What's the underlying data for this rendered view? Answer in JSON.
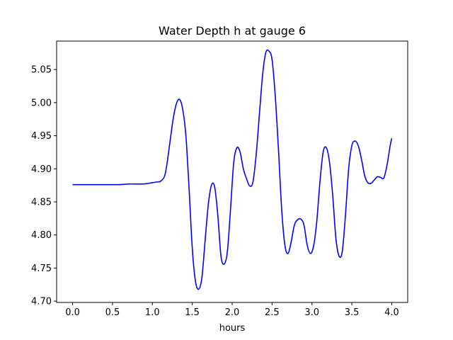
{
  "chart_data": {
    "type": "line",
    "title": "Water Depth h at gauge 6",
    "xlabel": "hours",
    "ylabel": "",
    "xlim": [
      -0.2,
      4.2
    ],
    "ylim": [
      4.698,
      5.093
    ],
    "xticks": [
      0.0,
      0.5,
      1.0,
      1.5,
      2.0,
      2.5,
      3.0,
      3.5,
      4.0
    ],
    "xtick_labels": [
      "0.0",
      "0.5",
      "1.0",
      "1.5",
      "2.0",
      "2.5",
      "3.0",
      "3.5",
      "4.0"
    ],
    "yticks": [
      4.7,
      4.75,
      4.8,
      4.85,
      4.9,
      4.95,
      5.0,
      5.05
    ],
    "ytick_labels": [
      "4.70",
      "4.75",
      "4.80",
      "4.85",
      "4.90",
      "4.95",
      "5.00",
      "5.05"
    ],
    "grid": false,
    "series": [
      {
        "color": "#0000ff",
        "x": [
          0.0,
          0.2,
          0.4,
          0.5,
          0.6,
          0.7,
          0.8,
          0.9,
          1.0,
          1.05,
          1.1,
          1.15,
          1.18,
          1.22,
          1.26,
          1.3,
          1.34,
          1.38,
          1.42,
          1.46,
          1.5,
          1.54,
          1.58,
          1.62,
          1.66,
          1.7,
          1.74,
          1.78,
          1.82,
          1.86,
          1.9,
          1.94,
          1.98,
          2.02,
          2.06,
          2.1,
          2.14,
          2.18,
          2.22,
          2.26,
          2.3,
          2.34,
          2.38,
          2.42,
          2.46,
          2.5,
          2.54,
          2.58,
          2.62,
          2.66,
          2.7,
          2.74,
          2.78,
          2.82,
          2.86,
          2.9,
          2.94,
          2.98,
          3.02,
          3.06,
          3.1,
          3.14,
          3.18,
          3.22,
          3.26,
          3.3,
          3.34,
          3.38,
          3.42,
          3.46,
          3.5,
          3.54,
          3.58,
          3.62,
          3.66,
          3.7,
          3.74,
          3.78,
          3.82,
          3.86,
          3.9,
          3.94,
          3.98,
          4.0
        ],
        "y": [
          4.876,
          4.876,
          4.876,
          4.876,
          4.8762,
          4.877,
          4.877,
          4.8772,
          4.879,
          4.88,
          4.881,
          4.888,
          4.905,
          4.94,
          4.975,
          4.998,
          5.005,
          4.99,
          4.95,
          4.87,
          4.78,
          4.73,
          4.718,
          4.735,
          4.79,
          4.845,
          4.875,
          4.873,
          4.83,
          4.768,
          4.756,
          4.775,
          4.84,
          4.91,
          4.932,
          4.925,
          4.9,
          4.885,
          4.874,
          4.88,
          4.92,
          4.98,
          5.04,
          5.075,
          5.078,
          5.065,
          5.01,
          4.93,
          4.84,
          4.785,
          4.772,
          4.79,
          4.815,
          4.823,
          4.824,
          4.815,
          4.785,
          4.772,
          4.783,
          4.82,
          4.88,
          4.925,
          4.932,
          4.91,
          4.86,
          4.795,
          4.768,
          4.775,
          4.83,
          4.9,
          4.935,
          4.942,
          4.935,
          4.915,
          4.89,
          4.879,
          4.878,
          4.883,
          4.888,
          4.887,
          4.886,
          4.905,
          4.935,
          4.946
        ]
      }
    ]
  }
}
